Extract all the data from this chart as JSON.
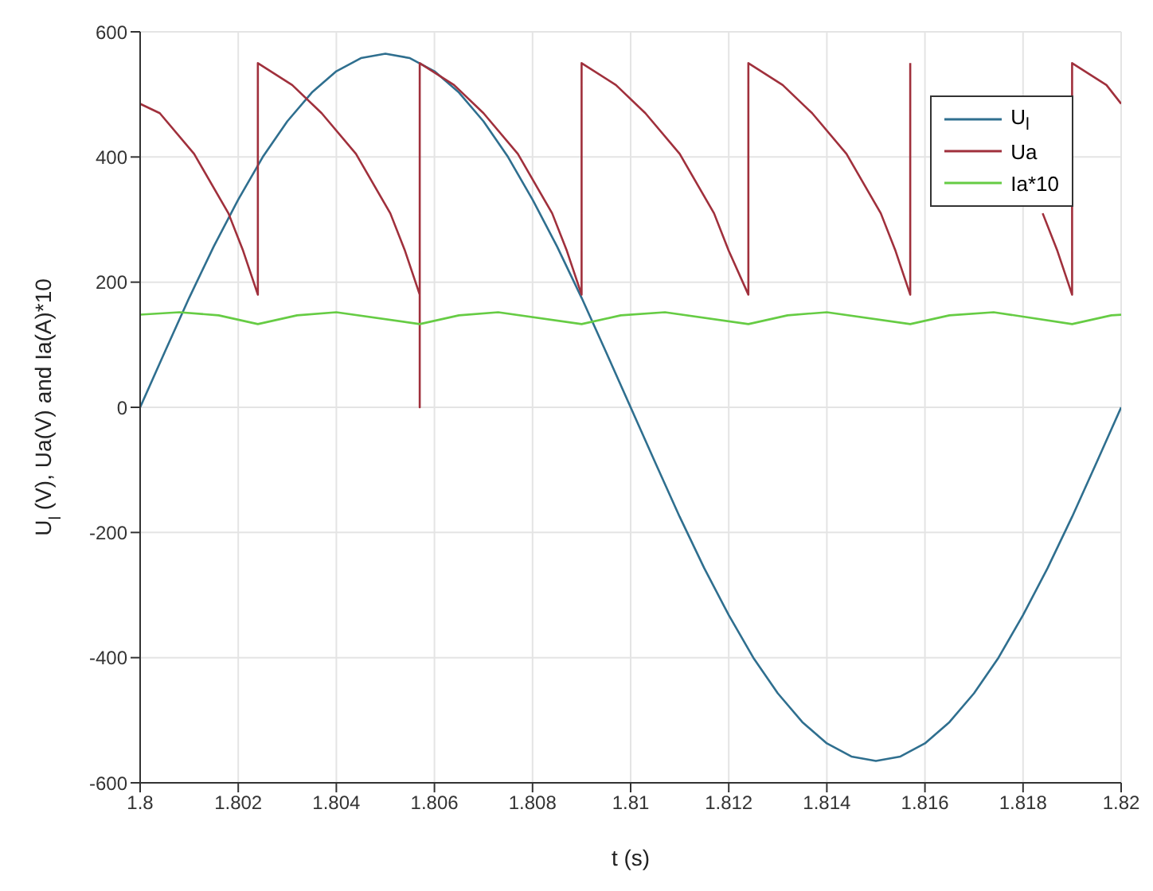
{
  "chart_data": {
    "type": "line",
    "xlabel": "t (s)",
    "ylabel": "U$_{l}$ (V), Ua(V) and Ia(A)*10",
    "xlim": [
      1.8,
      1.82
    ],
    "xticks": [
      1.8,
      1.802,
      1.804,
      1.806,
      1.808,
      1.81,
      1.812,
      1.814,
      1.816,
      1.818,
      1.82
    ],
    "ylim": [
      -600,
      600
    ],
    "yticks": [
      -600,
      -400,
      -200,
      0,
      200,
      400,
      600
    ],
    "grid": true,
    "legend": "top right",
    "marker": "none",
    "line_style": "solid",
    "series": [
      {
        "name": "U$_{l}$",
        "color": "#2f6f8f",
        "x": [
          1.8,
          1.8005,
          1.801,
          1.8015,
          1.802,
          1.8025,
          1.803,
          1.8035,
          1.804,
          1.8045,
          1.805,
          1.8055,
          1.806,
          1.8065,
          1.807,
          1.8075,
          1.808,
          1.8085,
          1.809,
          1.8095,
          1.81,
          1.8105,
          1.811,
          1.8115,
          1.812,
          1.8125,
          1.813,
          1.8135,
          1.814,
          1.8145,
          1.815,
          1.8155,
          1.816,
          1.8165,
          1.817,
          1.8175,
          1.818,
          1.8185,
          1.819,
          1.8195,
          1.82
        ],
        "values": [
          0,
          88,
          175,
          257,
          332,
          400,
          457,
          503,
          537,
          558,
          565,
          558,
          537,
          503,
          457,
          400,
          332,
          257,
          175,
          88,
          0,
          -88,
          -175,
          -257,
          -332,
          -400,
          -457,
          -503,
          -537,
          -558,
          -565,
          -558,
          -537,
          -503,
          -457,
          -400,
          -332,
          -257,
          -175,
          -88,
          0
        ]
      },
      {
        "name": "Ua",
        "color": "#a0303c",
        "x": [
          1.8,
          1.8004,
          1.8011,
          1.8018,
          1.8021,
          1.8024,
          1.8024,
          1.8031,
          1.8037,
          1.8044,
          1.8051,
          1.8054,
          1.8057,
          1.8057,
          1.8057,
          1.8064,
          1.807,
          1.8077,
          1.8084,
          1.8087,
          1.809,
          1.809,
          1.8097,
          1.8103,
          1.811,
          1.8117,
          1.812,
          1.8124,
          1.8124,
          1.8131,
          1.8137,
          1.8144,
          1.8151,
          1.8154,
          1.8157,
          1.8157,
          1.8164,
          1.817,
          1.8177,
          1.8184,
          1.8187,
          1.819,
          1.819,
          1.8197,
          1.82
        ],
        "values": [
          485,
          470,
          405,
          310,
          250,
          180,
          550,
          515,
          470,
          405,
          310,
          250,
          180,
          0,
          550,
          515,
          470,
          405,
          310,
          250,
          180,
          550,
          515,
          470,
          405,
          310,
          250,
          180,
          550,
          515,
          470,
          405,
          310,
          250,
          180,
          550,
          null,
          null,
          null,
          310,
          250,
          180,
          550,
          515,
          485
        ]
      },
      {
        "name": "Ia*10",
        "color": "#66cc44",
        "x": [
          1.8,
          1.8008,
          1.8016,
          1.8024,
          1.8032,
          1.804,
          1.8057,
          1.8065,
          1.8073,
          1.809,
          1.8098,
          1.8107,
          1.8124,
          1.8132,
          1.814,
          1.8157,
          1.8165,
          1.8174,
          1.819,
          1.8198,
          1.82
        ],
        "values": [
          148,
          152,
          147,
          133,
          147,
          152,
          133,
          147,
          152,
          133,
          147,
          152,
          133,
          147,
          152,
          133,
          147,
          152,
          133,
          147,
          148
        ]
      }
    ]
  }
}
